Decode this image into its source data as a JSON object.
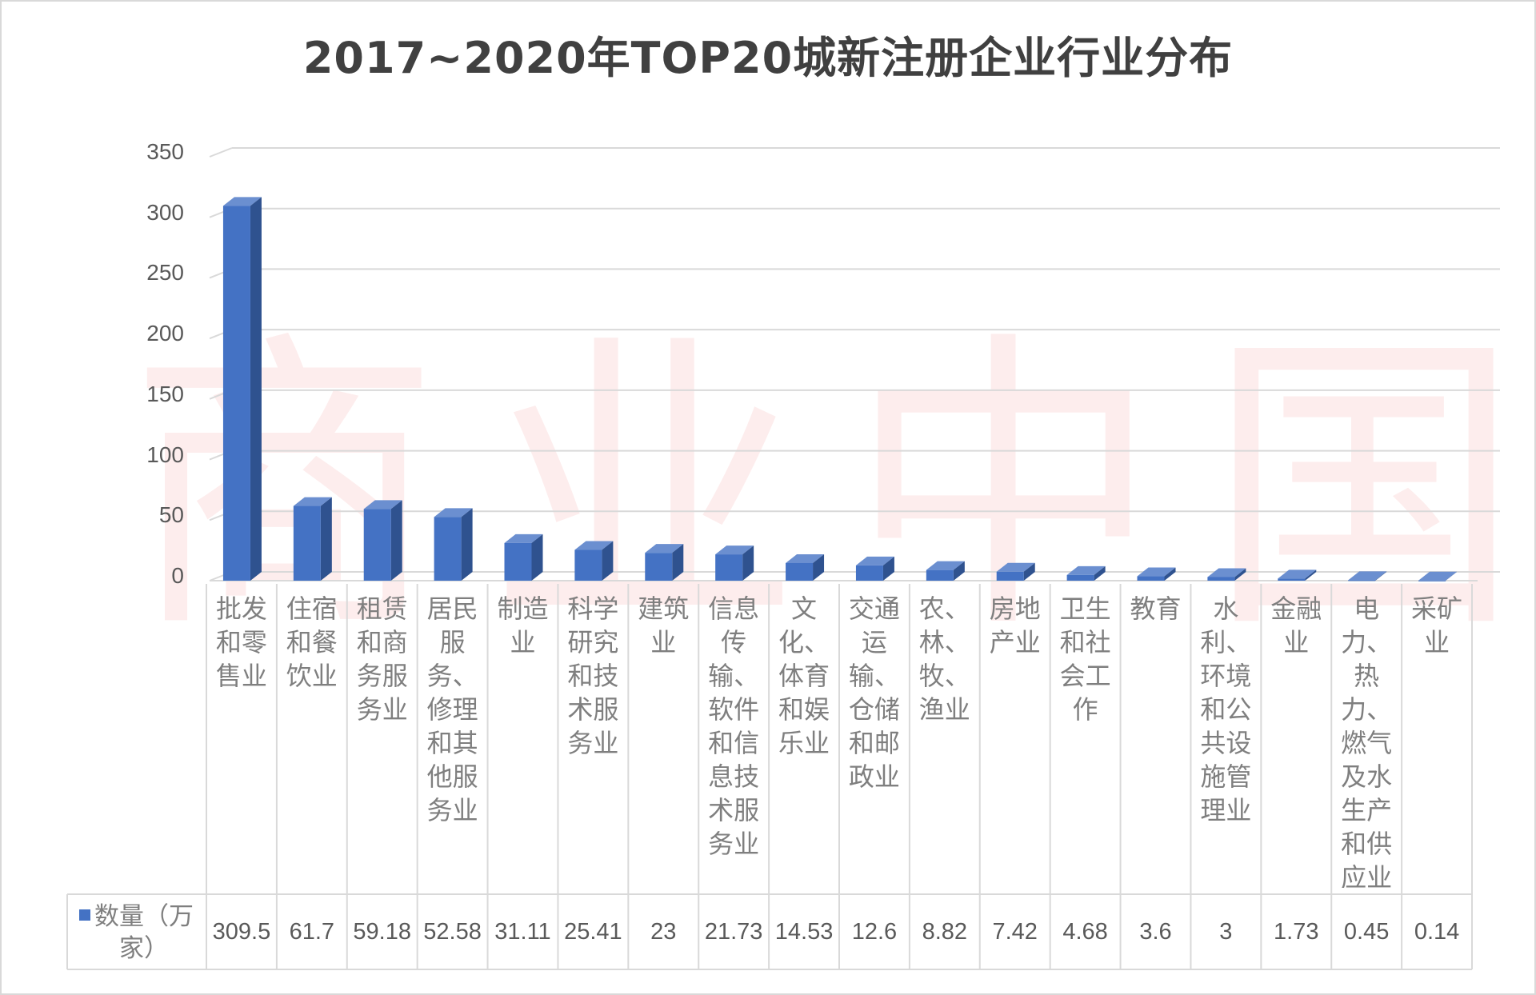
{
  "chart_data": {
    "type": "bar",
    "title": "2017~2020年TOP20城新注册企业行业分布",
    "ylim": [
      0,
      350
    ],
    "yticks": [
      0,
      50,
      100,
      150,
      200,
      250,
      300,
      350
    ],
    "grid": true,
    "series": [
      {
        "name": "数量（万家）",
        "color": "#4472c4",
        "values": [
          309.5,
          61.7,
          59.18,
          52.58,
          31.11,
          25.41,
          23,
          21.73,
          14.53,
          12.6,
          8.82,
          7.42,
          4.68,
          3.6,
          3,
          1.73,
          0.45,
          0.14
        ]
      }
    ],
    "categories": [
      "批发和零售业",
      "住宿和餐饮业",
      "租赁和商务服务业",
      "居民服务、修理和其他服务业",
      "制造业",
      "科学研究和技术服务业",
      "建筑业",
      "信息传输、软件和信息技术服务业",
      "文化、体育和娱乐业",
      "交通运输、仓储和邮政业",
      "农、林、牧、渔业",
      "房地产业",
      "卫生和社会工作",
      "教育",
      "水利、环境和公共设施管理业",
      "金融业",
      "电力、热力、燃气及水生产和供应业",
      "采矿业"
    ],
    "value_labels": [
      "309.5",
      "61.7",
      "59.18",
      "52.58",
      "31.11",
      "25.41",
      "23",
      "21.73",
      "14.53",
      "12.6",
      "8.82",
      "7.42",
      "4.68",
      "3.6",
      "3",
      "1.73",
      "0.45",
      "0.14"
    ]
  },
  "legend": {
    "label": "数量（万家）"
  },
  "watermark": "商业中国"
}
